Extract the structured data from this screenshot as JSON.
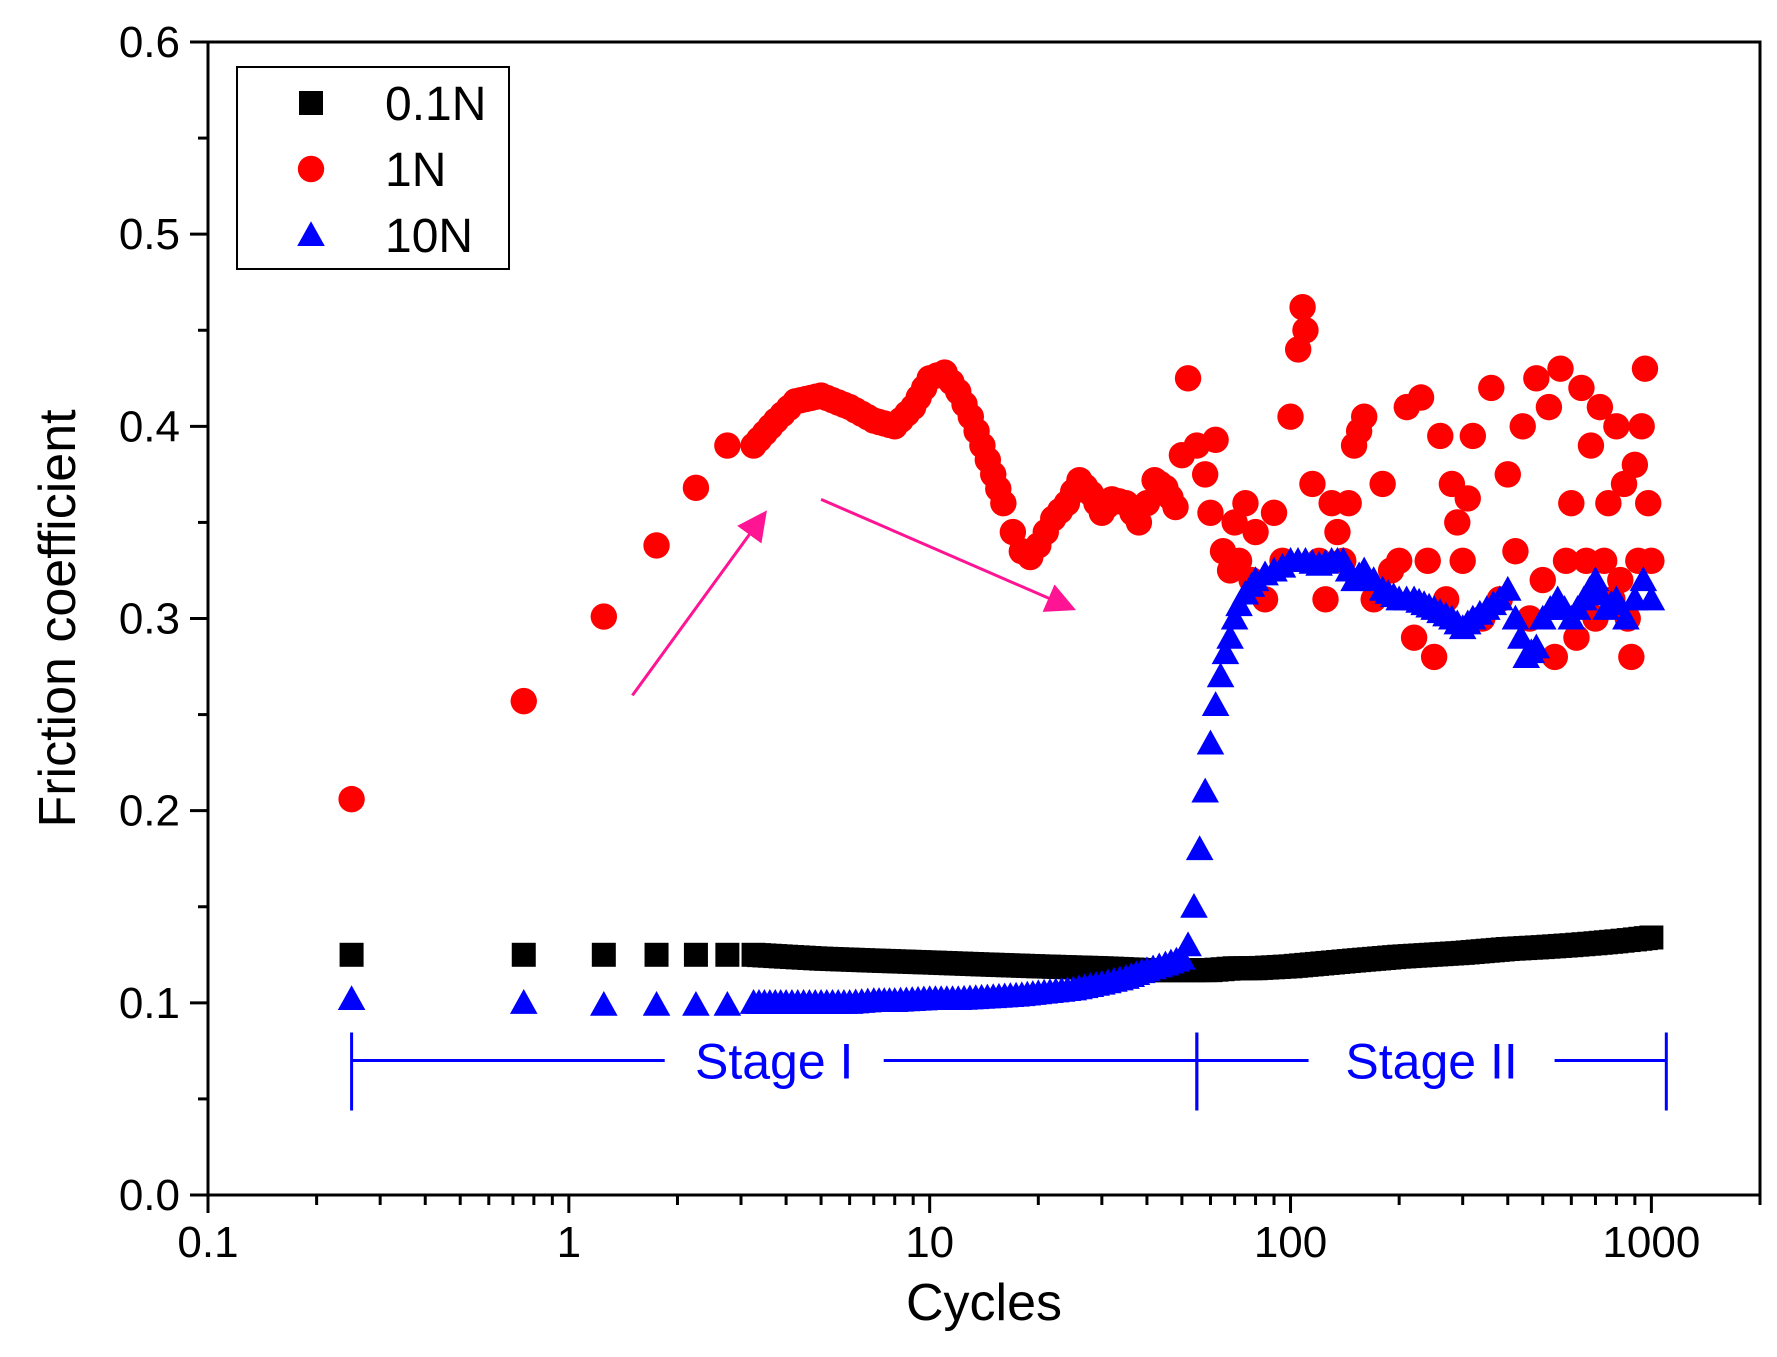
{
  "chart_data": {
    "type": "scatter",
    "title": "",
    "xlabel": "Cycles",
    "ylabel": "Friction coefficient",
    "xscale": "log",
    "xlim": [
      0.1,
      2000
    ],
    "ylim": [
      0.0,
      0.6
    ],
    "x_ticks": [
      0.1,
      1,
      10,
      100,
      1000
    ],
    "x_tick_labels": [
      "0.1",
      "1",
      "10",
      "100",
      "1000"
    ],
    "y_ticks": [
      0.0,
      0.1,
      0.2,
      0.3,
      0.4,
      0.5,
      0.6
    ],
    "y_tick_labels": [
      "0.0",
      "0.1",
      "0.2",
      "0.3",
      "0.4",
      "0.5",
      "0.6"
    ],
    "grid": false,
    "legend": {
      "position": "top-left",
      "boxed": true
    },
    "series": [
      {
        "name": "0.1N",
        "marker": "square",
        "color": "#000000",
        "x": [
          0.25,
          0.75,
          1.25,
          1.75,
          2.25,
          2.75,
          3.25,
          4,
          5,
          7,
          10,
          14,
          20,
          30,
          40,
          50,
          60,
          70,
          80,
          100,
          150,
          200,
          300,
          400,
          500,
          600,
          700,
          800,
          900,
          1000
        ],
        "y": [
          0.125,
          0.125,
          0.125,
          0.125,
          0.125,
          0.125,
          0.125,
          0.124,
          0.123,
          0.122,
          0.121,
          0.12,
          0.119,
          0.118,
          0.117,
          0.117,
          0.117,
          0.118,
          0.118,
          0.119,
          0.122,
          0.124,
          0.126,
          0.128,
          0.129,
          0.13,
          0.131,
          0.132,
          0.133,
          0.134
        ]
      },
      {
        "name": "1N",
        "marker": "circle",
        "color": "#ff0000",
        "x": [
          0.25,
          0.75,
          1.25,
          1.75,
          2.25,
          2.75,
          3.25,
          3.75,
          4.25,
          5,
          6,
          7,
          8,
          9,
          10,
          11,
          12,
          13,
          14,
          15,
          16,
          17,
          18,
          19,
          20,
          22,
          24,
          26,
          28,
          30,
          32,
          35,
          38,
          40,
          42,
          45,
          48,
          50,
          52,
          55,
          58,
          60,
          62,
          65,
          68,
          70,
          72,
          75,
          78,
          80,
          85,
          90,
          95,
          100,
          105,
          108,
          110,
          115,
          120,
          125,
          130,
          140,
          150,
          160,
          170,
          180,
          190,
          200,
          210,
          220,
          230,
          240,
          250,
          260,
          270,
          280,
          300,
          320,
          340,
          360,
          380,
          400,
          420,
          440,
          460,
          480,
          500,
          520,
          540,
          560,
          580,
          600,
          620,
          640,
          660,
          680,
          700,
          720,
          740,
          760,
          780,
          800,
          820,
          840,
          860,
          880,
          900,
          920,
          940,
          960,
          980,
          1000
        ],
        "y": [
          0.206,
          0.257,
          0.301,
          0.338,
          0.368,
          0.39,
          0.39,
          0.403,
          0.413,
          0.416,
          0.41,
          0.403,
          0.4,
          0.41,
          0.425,
          0.428,
          0.418,
          0.405,
          0.39,
          0.375,
          0.36,
          0.345,
          0.335,
          0.332,
          0.338,
          0.352,
          0.36,
          0.372,
          0.365,
          0.355,
          0.362,
          0.36,
          0.35,
          0.36,
          0.372,
          0.368,
          0.358,
          0.385,
          0.425,
          0.39,
          0.375,
          0.355,
          0.393,
          0.335,
          0.325,
          0.35,
          0.33,
          0.36,
          0.32,
          0.345,
          0.31,
          0.355,
          0.33,
          0.405,
          0.44,
          0.462,
          0.45,
          0.37,
          0.33,
          0.31,
          0.36,
          0.33,
          0.39,
          0.405,
          0.31,
          0.37,
          0.325,
          0.33,
          0.41,
          0.29,
          0.415,
          0.33,
          0.28,
          0.395,
          0.31,
          0.37,
          0.33,
          0.395,
          0.3,
          0.42,
          0.31,
          0.375,
          0.335,
          0.4,
          0.3,
          0.425,
          0.32,
          0.41,
          0.28,
          0.43,
          0.33,
          0.36,
          0.29,
          0.42,
          0.33,
          0.39,
          0.3,
          0.41,
          0.33,
          0.36,
          0.31,
          0.4,
          0.32,
          0.37,
          0.3,
          0.28,
          0.38,
          0.33,
          0.4,
          0.43,
          0.36,
          0.33
        ]
      },
      {
        "name": "10N",
        "marker": "triangle",
        "color": "#0000ff",
        "x": [
          0.25,
          0.75,
          1.25,
          1.75,
          2.25,
          2.75,
          3.25,
          4,
          5,
          6,
          7,
          8,
          10,
          12,
          15,
          18,
          20,
          25,
          30,
          35,
          40,
          45,
          50,
          52,
          54,
          56,
          58,
          60,
          62,
          64,
          66,
          68,
          70,
          72,
          75,
          78,
          80,
          85,
          90,
          95,
          100,
          110,
          120,
          130,
          140,
          150,
          160,
          170,
          180,
          200,
          220,
          250,
          280,
          300,
          320,
          350,
          380,
          400,
          420,
          450,
          480,
          500,
          550,
          600,
          650,
          700,
          750,
          800,
          850,
          900,
          950,
          1000
        ],
        "y": [
          0.102,
          0.1,
          0.099,
          0.099,
          0.099,
          0.099,
          0.1,
          0.1,
          0.1,
          0.1,
          0.101,
          0.101,
          0.102,
          0.102,
          0.103,
          0.104,
          0.105,
          0.107,
          0.11,
          0.113,
          0.117,
          0.12,
          0.123,
          0.13,
          0.15,
          0.18,
          0.21,
          0.235,
          0.255,
          0.27,
          0.282,
          0.29,
          0.3,
          0.307,
          0.313,
          0.317,
          0.32,
          0.323,
          0.325,
          0.327,
          0.33,
          0.33,
          0.328,
          0.33,
          0.33,
          0.32,
          0.325,
          0.32,
          0.315,
          0.31,
          0.31,
          0.305,
          0.3,
          0.295,
          0.3,
          0.305,
          0.31,
          0.315,
          0.3,
          0.28,
          0.285,
          0.3,
          0.31,
          0.3,
          0.31,
          0.32,
          0.305,
          0.31,
          0.3,
          0.31,
          0.32,
          0.31
        ]
      }
    ],
    "annotations": [
      {
        "type": "arrow",
        "from": [
          1.5,
          0.26
        ],
        "to": [
          3.5,
          0.355
        ],
        "color": "#ff1493"
      },
      {
        "type": "arrow",
        "from": [
          5,
          0.362
        ],
        "to": [
          25,
          0.305
        ],
        "color": "#ff1493"
      },
      {
        "type": "range",
        "label": "Stage I",
        "x": [
          0.25,
          55
        ],
        "y": 0.07,
        "color": "#0000ff"
      },
      {
        "type": "range",
        "label": "Stage II",
        "x": [
          55,
          1100
        ],
        "y": 0.07,
        "color": "#0000ff"
      }
    ]
  }
}
